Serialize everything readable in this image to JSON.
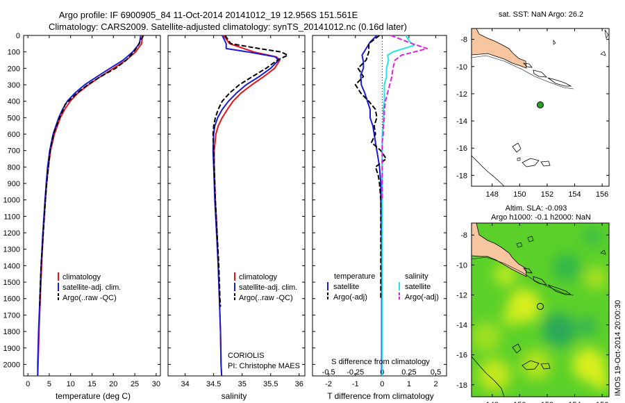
{
  "title": {
    "line1": "Argo profile: IF 6900905_84 11-Oct-2014 20141012_19 12.956S 151.561E",
    "line2": "Climatology: CARS2009. Satellite-adjusted climatology: synTS_20141012.nc (0.16d later)"
  },
  "colors": {
    "climatology": "#e8141a",
    "satellite": "#1a1ad8",
    "argo": "#000000",
    "sal_satellite": "#22e6e6",
    "sal_argo": "#e020e0",
    "land": "#f7c59f",
    "sla_green": "#5bd02a",
    "float_marker": "#2aa02a"
  },
  "chart_data": [
    {
      "id": "temperature",
      "type": "line",
      "xlabel": "temperature (deg C)",
      "ylabel": "",
      "xlim": [
        -1,
        31
      ],
      "ylim": [
        0,
        2070
      ],
      "xticks": [
        "0",
        "5",
        "10",
        "15",
        "20",
        "25",
        "30"
      ],
      "yticks": [
        "0",
        "100",
        "200",
        "300",
        "400",
        "500",
        "600",
        "700",
        "800",
        "900",
        "1000",
        "1100",
        "1200",
        "1300",
        "1400",
        "1500",
        "1600",
        "1700",
        "1800",
        "1900",
        "2000"
      ],
      "legend": [
        "climatology",
        "satellite-adj. clim.",
        "Argo(..raw -QC)"
      ],
      "series": [
        {
          "name": "climatology",
          "depth": [
            0,
            50,
            100,
            150,
            200,
            250,
            300,
            350,
            400,
            450,
            500,
            600,
            700,
            800,
            900,
            1000,
            1200,
            1400,
            1600,
            1800,
            2000,
            2070
          ],
          "values": [
            26.8,
            26.6,
            25.2,
            23.0,
            20.0,
            17.0,
            14.2,
            11.7,
            9.9,
            8.6,
            7.6,
            6.2,
            5.3,
            4.8,
            4.4,
            4.1,
            3.6,
            3.2,
            2.9,
            2.6,
            2.4,
            2.3
          ]
        },
        {
          "name": "satellite",
          "depth": [
            0,
            50,
            100,
            150,
            200,
            250,
            300,
            350,
            400,
            450,
            500,
            600,
            700,
            800,
            900,
            1000,
            1200,
            1400,
            1600,
            1800,
            2000,
            2070
          ],
          "values": [
            26.4,
            26.1,
            24.5,
            22.3,
            19.2,
            16.2,
            13.3,
            11.0,
            9.2,
            8.1,
            7.2,
            5.9,
            5.1,
            4.6,
            4.3,
            4.0,
            3.5,
            3.1,
            2.8,
            2.5,
            2.3,
            2.3
          ]
        },
        {
          "name": "Argo",
          "depth": [
            0,
            50,
            100,
            150,
            200,
            250,
            300,
            350,
            400,
            420,
            450,
            500,
            600,
            700,
            800,
            900,
            1000,
            1200,
            1400,
            1600,
            1650
          ],
          "values": [
            27.0,
            26.0,
            24.8,
            23.0,
            20.5,
            17.0,
            14.0,
            11.5,
            9.5,
            8.7,
            8.3,
            7.4,
            6.0,
            5.2,
            4.8,
            4.4,
            4.1,
            3.6,
            3.1,
            2.8,
            2.8
          ]
        }
      ]
    },
    {
      "id": "salinity",
      "type": "line",
      "xlabel": "salinity",
      "ylabel": "",
      "xlim": [
        33.7,
        36.1
      ],
      "ylim": [
        0,
        2070
      ],
      "xticks": [
        "34",
        "34.5",
        "35",
        "35.5",
        "36"
      ],
      "legend": [
        "climatology",
        "satellite-adj. clim.",
        "Argo(..raw -QC)"
      ],
      "annotations": [
        "CORIOLIS",
        "PI: Christophe MAES"
      ],
      "series": [
        {
          "name": "climatology",
          "depth": [
            0,
            50,
            100,
            130,
            150,
            200,
            250,
            300,
            350,
            400,
            450,
            500,
            550,
            600,
            700,
            800,
            1000,
            1200,
            1400,
            1600,
            1800,
            2000,
            2070
          ],
          "values": [
            34.67,
            34.78,
            35.2,
            35.6,
            35.66,
            35.57,
            35.38,
            35.17,
            34.98,
            34.84,
            34.74,
            34.65,
            34.58,
            34.54,
            34.51,
            34.51,
            34.53,
            34.56,
            34.58,
            34.6,
            34.62,
            34.63,
            34.64
          ]
        },
        {
          "name": "satellite",
          "depth": [
            0,
            50,
            80,
            100,
            130,
            150,
            200,
            250,
            300,
            350,
            400,
            450,
            500,
            550,
            600,
            700,
            800,
            1000,
            1200,
            1400,
            1600,
            1800,
            2000,
            2070
          ],
          "values": [
            34.65,
            34.72,
            34.72,
            35.1,
            35.58,
            35.64,
            35.5,
            35.3,
            35.07,
            34.9,
            34.76,
            34.65,
            34.57,
            34.52,
            34.5,
            34.49,
            34.5,
            34.52,
            34.55,
            34.58,
            34.6,
            34.62,
            34.63,
            34.64
          ]
        },
        {
          "name": "Argo",
          "depth": [
            0,
            50,
            80,
            100,
            120,
            150,
            200,
            250,
            300,
            350,
            400,
            450,
            500,
            550,
            600,
            700,
            800,
            1000,
            1200,
            1400,
            1600,
            1650
          ],
          "values": [
            34.7,
            34.8,
            35.3,
            35.68,
            35.8,
            35.62,
            35.42,
            35.18,
            34.95,
            34.78,
            34.65,
            34.58,
            34.53,
            34.5,
            34.49,
            34.5,
            34.51,
            34.53,
            34.56,
            34.59,
            34.61,
            34.62
          ]
        }
      ]
    },
    {
      "id": "difference",
      "type": "line",
      "xlabel": "T difference from climatology",
      "secondary_xlabel": "S difference from climatology",
      "xlim": [
        -2.6,
        2.4
      ],
      "ylim": [
        0,
        2070
      ],
      "xticks": [
        "-2",
        "-1",
        "0",
        "1",
        "2"
      ],
      "secondary_xticks": [
        "-0.5",
        "-0.25",
        "0",
        "0.25",
        "0.5"
      ],
      "legend_headers": [
        "temperature",
        "salinity"
      ],
      "legend_temperature": [
        "satellite",
        "Argo(-adj)"
      ],
      "legend_salinity": [
        "satellite",
        "Argo(-adj)"
      ],
      "series": [
        {
          "name": "T satellite",
          "color": "satellite",
          "dash": false,
          "depth": [
            0,
            40,
            80,
            120,
            160,
            200,
            240,
            300,
            350,
            400,
            450,
            500,
            550,
            600,
            650,
            700,
            750,
            800,
            900,
            1000,
            1200,
            1400,
            1600,
            1800,
            2000,
            2070
          ],
          "values": [
            -0.2,
            -0.45,
            -0.6,
            -0.75,
            -0.7,
            -0.7,
            -0.8,
            -0.78,
            -0.65,
            -0.55,
            -0.45,
            -0.45,
            -0.35,
            -0.3,
            -0.25,
            -0.2,
            -0.15,
            -0.1,
            -0.05,
            -0.05,
            -0.03,
            -0.02,
            -0.02,
            -0.02,
            -0.02,
            -0.02
          ]
        },
        {
          "name": "T Argo",
          "color": "argo",
          "dash": true,
          "depth": [
            0,
            50,
            100,
            150,
            200,
            250,
            300,
            350,
            400,
            450,
            500,
            550,
            600,
            650,
            700,
            750,
            800,
            850,
            900,
            1000,
            1200,
            1400,
            1600
          ],
          "values": [
            -0.1,
            -0.5,
            -0.5,
            -0.6,
            -0.9,
            -0.7,
            -1.0,
            -0.8,
            -0.5,
            -0.25,
            -0.2,
            -0.3,
            -0.25,
            -0.4,
            -0.05,
            0.15,
            -0.25,
            -0.15,
            -0.1,
            -0.05,
            -0.05,
            -0.05,
            -0.05
          ]
        },
        {
          "name": "S satellite",
          "color": "sal_satellite",
          "dash": false,
          "depth": [
            0,
            40,
            60,
            80,
            100,
            120,
            150,
            200,
            250,
            300,
            350,
            400,
            450,
            500,
            550,
            600,
            650,
            700,
            750,
            800,
            900,
            1000,
            1200,
            1400,
            1600,
            1800,
            2000,
            2070
          ],
          "values": [
            0.22,
            0.26,
            0.3,
            0.2,
            0.1,
            0.05,
            0.06,
            0.04,
            0.04,
            0.02,
            0.02,
            0.02,
            0.01,
            0.01,
            0.01,
            0.0,
            0.0,
            0.0,
            0.0,
            0.0,
            0.0,
            0.0,
            0.0,
            0.0,
            0.0,
            0.0,
            0.0,
            0.0
          ]
        },
        {
          "name": "S Argo",
          "color": "sal_argo",
          "dash": true,
          "depth": [
            0,
            50,
            80,
            100,
            120,
            150,
            200,
            250,
            300,
            350,
            400,
            450,
            500,
            550,
            600,
            650,
            700,
            750,
            800,
            900,
            1000
          ],
          "values": [
            0.08,
            0.28,
            0.42,
            0.3,
            0.18,
            0.12,
            0.1,
            0.09,
            0.07,
            0.05,
            0.03,
            0.02,
            0.02,
            0.01,
            0.01,
            0.0,
            0.0,
            0.0,
            0.0,
            0.0,
            0.0
          ]
        }
      ]
    },
    {
      "id": "map_sst",
      "type": "map",
      "title": "sat. SST: NaN Argo: 26.2",
      "xticks": [
        "148",
        "150",
        "152",
        "154",
        "156"
      ],
      "yticks": [
        "-8",
        "-10",
        "-12",
        "-14",
        "-16",
        "-18"
      ],
      "xlim": [
        146.5,
        156.5
      ],
      "ylim": [
        -18.8,
        -7.2
      ],
      "float_position": {
        "lon": 151.561,
        "lat": -12.956
      }
    },
    {
      "id": "map_sla",
      "type": "map",
      "title_line1": "Altim. SLA: -0.093",
      "title_line2": "Argo h1000: -0.1 h2000: NaN",
      "xticks": [
        "148",
        "150",
        "152",
        "154",
        "156"
      ],
      "yticks": [
        "-8",
        "-10",
        "-12",
        "-14",
        "-16",
        "-18"
      ],
      "xlim": [
        146.5,
        156.5
      ],
      "ylim": [
        -18.8,
        -7.2
      ],
      "float_position": {
        "lon": 151.561,
        "lat": -12.956
      }
    }
  ],
  "watermark": "IMOS 19-Oct-2014 20:00:30"
}
